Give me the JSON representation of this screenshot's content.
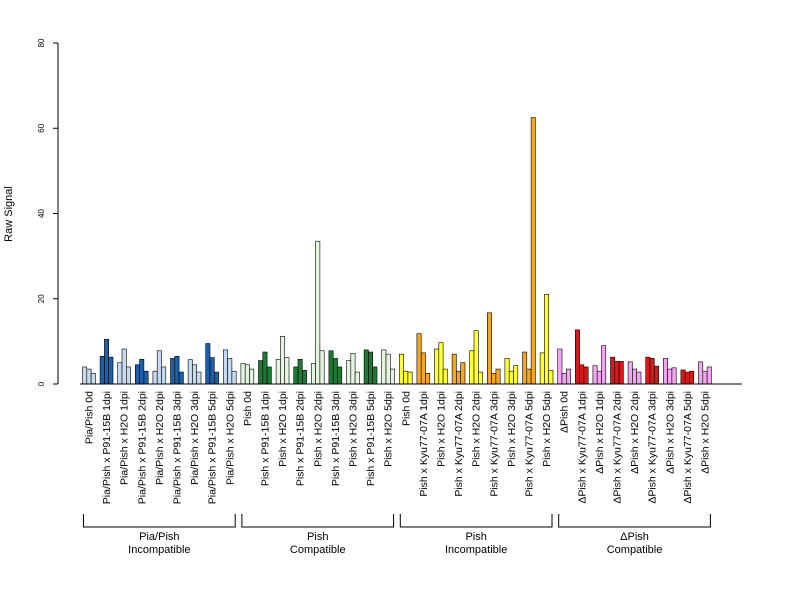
{
  "chart_data": {
    "type": "bar",
    "ylabel": "Raw Signal",
    "ylim": [
      0,
      80
    ],
    "yticks": [
      0,
      20,
      40,
      60,
      80
    ],
    "grid": false,
    "replicates_per_category": 3,
    "groups": [
      {
        "name_lines": [
          "Pia/Pish",
          "Incompatible"
        ],
        "colors": {
          "control": "#c6dbef",
          "treated": "#1f5fa8"
        },
        "categories": [
          {
            "label": "Pia/Pish 0d",
            "type": "control",
            "values": [
              4,
              3.5,
              2.5
            ]
          },
          {
            "label": "Pia/Pish x P91-15B 1dpi",
            "type": "treated",
            "values": [
              6.5,
              10.5,
              6.3
            ]
          },
          {
            "label": "Pia/Pish x H2O 1dpi",
            "type": "control",
            "values": [
              5,
              8.2,
              4
            ]
          },
          {
            "label": "Pia/Pish x P91-15B 2dpi",
            "type": "treated",
            "values": [
              4.5,
              5.8,
              3
            ]
          },
          {
            "label": "Pia/Pish x H2O 2dpi",
            "type": "control",
            "values": [
              3,
              7.8,
              4
            ]
          },
          {
            "label": "Pia/Pish x P91-15B 3dpi",
            "type": "treated",
            "values": [
              6,
              6.5,
              2.8
            ]
          },
          {
            "label": "Pia/Pish x H2O 3dpi",
            "type": "control",
            "values": [
              5.7,
              4.5,
              2.8
            ]
          },
          {
            "label": "Pia/Pish x P91-15B 5dpi",
            "type": "treated",
            "values": [
              9.5,
              6.2,
              2.8
            ]
          },
          {
            "label": "Pia/Pish x H2O 5dpi",
            "type": "control",
            "values": [
              8,
              6,
              3
            ]
          }
        ]
      },
      {
        "name_lines": [
          "Pish",
          "Compatible"
        ],
        "colors": {
          "control": "#e5f5e0",
          "treated": "#1e7a34"
        },
        "categories": [
          {
            "label": "Pish 0d",
            "type": "control",
            "values": [
              4.8,
              4.5,
              3.5
            ]
          },
          {
            "label": "Pish x P91-15B 1dpi",
            "type": "treated",
            "values": [
              5.5,
              7.5,
              4
            ]
          },
          {
            "label": "Pish x H2O 1dpi",
            "type": "control",
            "values": [
              5.8,
              11.2,
              6.2
            ]
          },
          {
            "label": "Pish x P91-15B 2dpi",
            "type": "treated",
            "values": [
              4,
              5.8,
              3.2
            ]
          },
          {
            "label": "Pish x H2O 2dpi",
            "type": "control",
            "values": [
              4.8,
              33.5,
              7.8
            ]
          },
          {
            "label": "Pish x P91-15B 3dpi",
            "type": "treated",
            "values": [
              7.8,
              6,
              4
            ]
          },
          {
            "label": "Pish x H2O 3dpi",
            "type": "control",
            "values": [
              5.5,
              7.2,
              2.8
            ]
          },
          {
            "label": "Pish x P91-15B 5dpi",
            "type": "treated",
            "values": [
              8,
              7.5,
              4
            ]
          },
          {
            "label": "Pish x H2O 5dpi",
            "type": "control",
            "values": [
              8,
              7,
              3.5
            ]
          }
        ]
      },
      {
        "name_lines": [
          "Pish",
          "Incompatible"
        ],
        "colors": {
          "control": "#ffff33",
          "treated": "#f5a623"
        },
        "categories": [
          {
            "label": "Pish 0d",
            "type": "control",
            "values": [
              7,
              3,
              2.8
            ]
          },
          {
            "label": "Pish x Kyu77-07A 1dpi",
            "type": "treated",
            "values": [
              11.8,
              7.3,
              2.5
            ]
          },
          {
            "label": "Pish x H2O 1dpi",
            "type": "control",
            "values": [
              8.2,
              9.7,
              3.5
            ]
          },
          {
            "label": "Pish x Kyu77-07A 2dpi",
            "type": "treated",
            "values": [
              7,
              3,
              5
            ]
          },
          {
            "label": "Pish x H2O 2dpi",
            "type": "control",
            "values": [
              7.8,
              12.5,
              2.8
            ]
          },
          {
            "label": "Pish x Kyu77-07A 3dpi",
            "type": "treated",
            "values": [
              16.7,
              2.5,
              3.5
            ]
          },
          {
            "label": "Pish x H2O 3dpi",
            "type": "control",
            "values": [
              6,
              3,
              4.3
            ]
          },
          {
            "label": "Pish x Kyu77-07A 5dpi",
            "type": "treated",
            "values": [
              7.5,
              3.5,
              62.5
            ]
          },
          {
            "label": "Pish x H2O 5dpi",
            "type": "control",
            "values": [
              7.3,
              21,
              3.2
            ]
          }
        ]
      },
      {
        "name_lines": [
          "ΔPish",
          "Compatible"
        ],
        "colors": {
          "control": "#f2a6f2",
          "treated": "#d7191c"
        },
        "categories": [
          {
            "label": "ΔPish 0d",
            "type": "control",
            "values": [
              8.2,
              2.5,
              3.5
            ]
          },
          {
            "label": "ΔPish x Kyu77-07A 1dpi",
            "type": "treated",
            "values": [
              12.7,
              4.5,
              4
            ]
          },
          {
            "label": "ΔPish x H2O 1dpi",
            "type": "control",
            "values": [
              4.3,
              3,
              9
            ]
          },
          {
            "label": "ΔPish x Kyu77-07A 2dpi",
            "type": "treated",
            "values": [
              6.3,
              5.3,
              5.3
            ]
          },
          {
            "label": "ΔPish x H2O 2dpi",
            "type": "control",
            "values": [
              5.2,
              3.5,
              2.8
            ]
          },
          {
            "label": "ΔPish x Kyu77-07A 3dpi",
            "type": "treated",
            "values": [
              6.3,
              6,
              4.2
            ]
          },
          {
            "label": "ΔPish x H2O 3dpi",
            "type": "control",
            "values": [
              6,
              3.5,
              3.8
            ]
          },
          {
            "label": "ΔPish x Kyu77-07A 5dpi",
            "type": "treated",
            "values": [
              3.3,
              2.8,
              3
            ]
          },
          {
            "label": "ΔPish x H2O 5dpi",
            "type": "control",
            "values": [
              5.2,
              3,
              4
            ]
          }
        ]
      }
    ]
  }
}
